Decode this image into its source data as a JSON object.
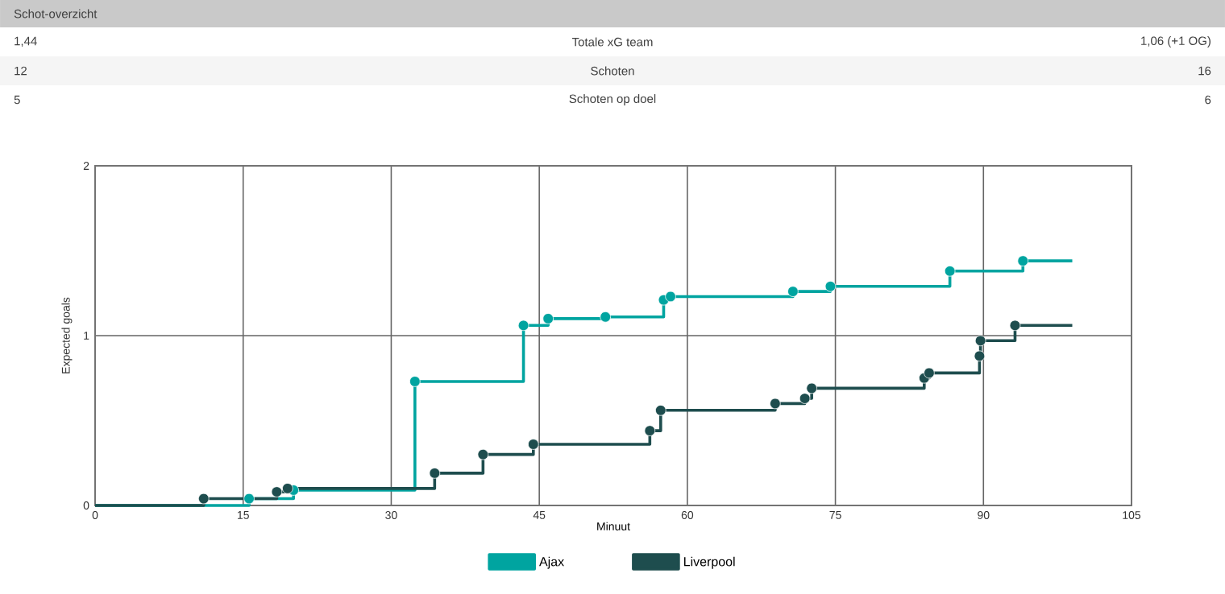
{
  "chart_data": [
    {
      "type": "other",
      "title": "Schot-overzicht",
      "categories": [
        "Totale xG team",
        "Schoten",
        "Schoten op doel"
      ],
      "series": [
        {
          "values": [
            1.44,
            12,
            5
          ],
          "value_labels": [
            "1,44",
            "12",
            "5"
          ]
        },
        {
          "values": [
            1.06,
            16,
            6
          ],
          "value_labels": [
            "1,06 (+1 OG)",
            "16",
            "6"
          ]
        }
      ]
    },
    {
      "type": "step",
      "xlabel": "Minuut",
      "ylabel": "Expected goals",
      "xlim": [
        0,
        105
      ],
      "xticks": [
        0,
        15,
        30,
        45,
        60,
        75,
        90,
        105
      ],
      "ylim": [
        0,
        2
      ],
      "yticks": [
        0,
        1,
        2
      ],
      "grid": true,
      "legend": "bottom",
      "series": [
        {
          "name": "Ajax",
          "color": "#00a4a0",
          "marker": "none",
          "x": [
            0,
            15.6,
            20.1,
            32.4,
            43.4,
            45.9,
            51.7,
            57.6,
            58.3,
            70.7,
            74.5,
            86.6,
            94.0,
            99
          ],
          "values": [
            0,
            0.04,
            0.09,
            0.73,
            1.06,
            1.1,
            1.11,
            1.21,
            1.23,
            1.26,
            1.29,
            1.38,
            1.44,
            1.44
          ]
        },
        {
          "name": "Liverpool",
          "color": "#1e4d4e",
          "marker": "none",
          "x": [
            0,
            11.0,
            18.4,
            19.5,
            34.4,
            39.3,
            44.4,
            56.2,
            57.3,
            68.9,
            71.9,
            72.6,
            84.0,
            84.5,
            89.6,
            89.7,
            93.2,
            99
          ],
          "values": [
            0,
            0.04,
            0.08,
            0.1,
            0.19,
            0.3,
            0.36,
            0.44,
            0.56,
            0.6,
            0.63,
            0.69,
            0.75,
            0.78,
            0.88,
            0.97,
            1.06,
            1.06
          ]
        },
        {
          "type": "scatter",
          "color": "#00a4a0",
          "marker": "circle",
          "x": [
            15.6,
            20.1,
            32.4,
            43.4,
            45.9,
            51.7,
            57.6,
            58.3,
            70.7,
            74.5,
            86.6,
            94.0
          ],
          "values": [
            0.04,
            0.09,
            0.73,
            1.06,
            1.1,
            1.11,
            1.21,
            1.23,
            1.26,
            1.29,
            1.38,
            1.44
          ]
        },
        {
          "type": "scatter",
          "color": "#1e4d4e",
          "marker": "circle",
          "x": [
            11.0,
            18.4,
            19.5,
            34.4,
            39.3,
            44.4,
            56.2,
            57.3,
            68.9,
            71.9,
            72.6,
            84.0,
            84.5,
            89.6,
            89.7,
            93.2
          ],
          "values": [
            0.04,
            0.08,
            0.1,
            0.19,
            0.3,
            0.36,
            0.44,
            0.56,
            0.6,
            0.63,
            0.69,
            0.75,
            0.78,
            0.88,
            0.97,
            1.06
          ]
        }
      ]
    }
  ]
}
